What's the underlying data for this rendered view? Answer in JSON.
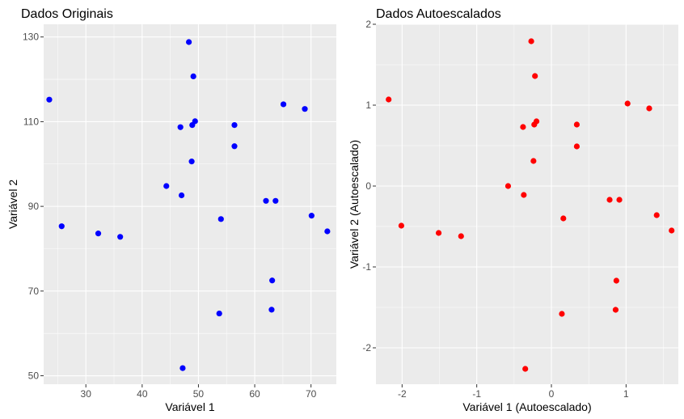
{
  "chart_data": [
    {
      "type": "scatter",
      "title": "Dados Originais",
      "xlabel": "Variável 1",
      "ylabel": "Variável 2",
      "xlim": [
        22.5,
        74.5
      ],
      "ylim": [
        48,
        133
      ],
      "x_ticks": [
        30,
        40,
        50,
        60,
        70
      ],
      "y_ticks": [
        50,
        70,
        90,
        110,
        130
      ],
      "point_color": "#0000ff",
      "grid": true,
      "points": [
        {
          "x": 23.5,
          "y": 115.2
        },
        {
          "x": 25.7,
          "y": 85.3
        },
        {
          "x": 32.2,
          "y": 83.6
        },
        {
          "x": 36.1,
          "y": 82.8
        },
        {
          "x": 44.3,
          "y": 94.8
        },
        {
          "x": 46.8,
          "y": 108.7
        },
        {
          "x": 47.0,
          "y": 92.6
        },
        {
          "x": 47.2,
          "y": 51.8
        },
        {
          "x": 48.3,
          "y": 128.8
        },
        {
          "x": 48.8,
          "y": 100.6
        },
        {
          "x": 48.9,
          "y": 109.2
        },
        {
          "x": 49.1,
          "y": 120.7
        },
        {
          "x": 49.4,
          "y": 110.1
        },
        {
          "x": 53.7,
          "y": 64.7
        },
        {
          "x": 54.0,
          "y": 87.0
        },
        {
          "x": 56.4,
          "y": 109.2
        },
        {
          "x": 56.4,
          "y": 104.2
        },
        {
          "x": 62.0,
          "y": 91.3
        },
        {
          "x": 63.0,
          "y": 65.6
        },
        {
          "x": 63.1,
          "y": 72.5
        },
        {
          "x": 63.7,
          "y": 91.3
        },
        {
          "x": 65.1,
          "y": 114.1
        },
        {
          "x": 68.9,
          "y": 113.0
        },
        {
          "x": 70.1,
          "y": 87.8
        },
        {
          "x": 72.9,
          "y": 84.1
        }
      ]
    },
    {
      "type": "scatter",
      "title": "Dados Autoescalados",
      "xlabel": "Variável 1 (Autoescalado)",
      "ylabel": "Variável 2 (Autoescalado)",
      "xlim": [
        -2.35,
        1.7
      ],
      "ylim": [
        -2.45,
        2.0
      ],
      "x_ticks": [
        -2,
        -1,
        0,
        1
      ],
      "y_ticks": [
        -2,
        -1,
        0,
        1,
        2
      ],
      "point_color": "#ff0000",
      "grid": true,
      "points": [
        {
          "x": -2.18,
          "y": 1.07
        },
        {
          "x": -2.01,
          "y": -0.49
        },
        {
          "x": -1.51,
          "y": -0.58
        },
        {
          "x": -1.21,
          "y": -0.62
        },
        {
          "x": -0.58,
          "y": 0.0
        },
        {
          "x": -0.38,
          "y": 0.73
        },
        {
          "x": -0.37,
          "y": -0.11
        },
        {
          "x": -0.35,
          "y": -2.26
        },
        {
          "x": -0.27,
          "y": 1.79
        },
        {
          "x": -0.24,
          "y": 0.31
        },
        {
          "x": -0.23,
          "y": 0.76
        },
        {
          "x": -0.22,
          "y": 1.36
        },
        {
          "x": -0.2,
          "y": 0.8
        },
        {
          "x": 0.14,
          "y": -1.58
        },
        {
          "x": 0.16,
          "y": -0.4
        },
        {
          "x": 0.34,
          "y": 0.76
        },
        {
          "x": 0.34,
          "y": 0.49
        },
        {
          "x": 0.78,
          "y": -0.17
        },
        {
          "x": 0.86,
          "y": -1.53
        },
        {
          "x": 0.87,
          "y": -1.17
        },
        {
          "x": 0.91,
          "y": -0.17
        },
        {
          "x": 1.02,
          "y": 1.02
        },
        {
          "x": 1.31,
          "y": 0.96
        },
        {
          "x": 1.41,
          "y": -0.36
        },
        {
          "x": 1.61,
          "y": -0.55
        }
      ]
    }
  ]
}
